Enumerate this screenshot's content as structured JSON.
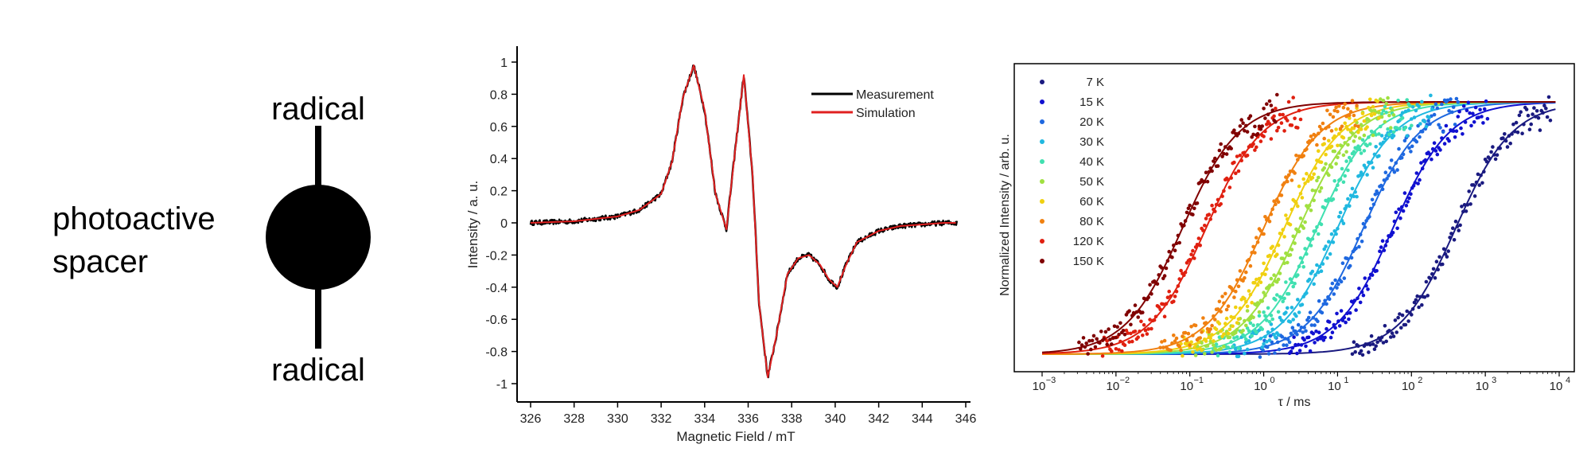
{
  "panel_a": {
    "top_label": "radical",
    "bottom_label": "radical",
    "spacer_label_line1": "photoactive",
    "spacer_label_line2": "spacer"
  },
  "chart_data": [
    {
      "type": "line",
      "xlabel": "Magnetic Field / mT",
      "ylabel": "Intensity / a. u.",
      "xlim": [
        325.5,
        346
      ],
      "ylim": [
        -1.1,
        1.1
      ],
      "xticks": [
        326,
        328,
        330,
        332,
        334,
        336,
        338,
        340,
        342,
        344,
        346
      ],
      "yticks": [
        1,
        0.8,
        0.6,
        0.4,
        0.2,
        0,
        -0.2,
        -0.4,
        -0.6,
        -0.8,
        -1
      ],
      "ytick_labels": [
        "1",
        "0.8",
        "0.6",
        "0.4",
        "0.2",
        "0",
        "-0.2",
        "-0.4",
        "-0.6",
        "-0.8",
        "-1"
      ],
      "legend_position": "top-right",
      "series": [
        {
          "name": "Measurement",
          "color": "#000000",
          "noisy": true
        },
        {
          "name": "Simulation",
          "color": "#e02020",
          "noisy": false
        }
      ],
      "curve": {
        "x": [
          326,
          328,
          330,
          331,
          332,
          332.5,
          333,
          333.5,
          334,
          334.5,
          335,
          335.4,
          335.8,
          336.2,
          336.5,
          336.9,
          337.3,
          337.8,
          338.3,
          338.8,
          339.3,
          339.7,
          340.1,
          340.5,
          341,
          342,
          343,
          344,
          345,
          345.6
        ],
        "y": [
          0.0,
          0.01,
          0.04,
          0.08,
          0.18,
          0.38,
          0.78,
          0.98,
          0.7,
          0.18,
          -0.04,
          0.45,
          0.92,
          0.3,
          -0.5,
          -0.96,
          -0.7,
          -0.32,
          -0.22,
          -0.2,
          -0.26,
          -0.35,
          -0.4,
          -0.26,
          -0.12,
          -0.05,
          -0.02,
          -0.01,
          0.0,
          0.0
        ]
      }
    },
    {
      "type": "scatter",
      "xlabel": "τ / ms",
      "ylabel": "Normalized Intensity / arb. u.",
      "xscale": "log",
      "xlim": [
        -3.3,
        4.2
      ],
      "xticks": [
        -3,
        -2,
        -1,
        0,
        1,
        2,
        3,
        4
      ],
      "xtick_labels": [
        "10",
        "10",
        "10",
        "10",
        "10",
        "10",
        "10",
        "10"
      ],
      "xtick_exponents": [
        "−3",
        "−2",
        "−1",
        "0",
        "1",
        "2",
        "3",
        "4"
      ],
      "ylim": [
        -0.05,
        1.1
      ],
      "legend_position": "top-left",
      "series": [
        {
          "name": "7 K",
          "color": "#1a1a80",
          "center_log10": 2.6
        },
        {
          "name": "15 K",
          "color": "#1010d0",
          "center_log10": 1.75
        },
        {
          "name": "20 K",
          "color": "#1e68e0",
          "center_log10": 1.35
        },
        {
          "name": "30 K",
          "color": "#20b8e0",
          "center_log10": 1.0
        },
        {
          "name": "40 K",
          "color": "#40e0b0",
          "center_log10": 0.72
        },
        {
          "name": "50 K",
          "color": "#a0e040",
          "center_log10": 0.48
        },
        {
          "name": "60 K",
          "color": "#f0d010",
          "center_log10": 0.28
        },
        {
          "name": "80 K",
          "color": "#f08010",
          "center_log10": 0.0
        },
        {
          "name": "120 K",
          "color": "#e02010",
          "center_log10": -0.78
        },
        {
          "name": "150 K",
          "color": "#800000",
          "center_log10": -1.1
        }
      ]
    }
  ]
}
